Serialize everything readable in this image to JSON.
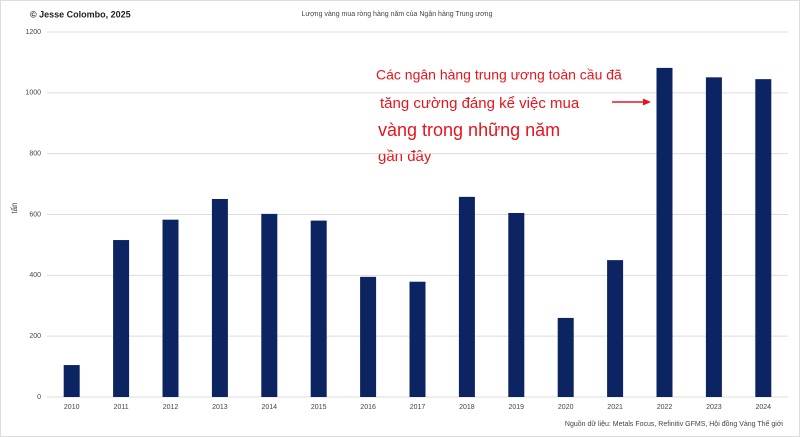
{
  "chart_data": {
    "type": "bar",
    "title": "Lượng vàng mua ròng hàng năm của Ngân hàng Trung ương",
    "credit": "© Jesse Colombo, 2025",
    "y_label": "tấn",
    "source": "Nguồn dữ liệu: Metals Focus, Refinitiv GFMS, Hội đồng Vàng Thế giới",
    "annotation": [
      "Các ngân hàng trung ương toàn cầu đã",
      "tăng cường đáng kể việc mua",
      "vàng trong những năm",
      "gần đây"
    ],
    "annotation_color": "#e8141b",
    "categories": [
      "2010",
      "2011",
      "2012",
      "2013",
      "2014",
      "2015",
      "2016",
      "2017",
      "2018",
      "2019",
      "2020",
      "2021",
      "2022",
      "2023",
      "2024"
    ],
    "values": [
      105,
      516,
      583,
      651,
      602,
      580,
      395,
      379,
      658,
      605,
      260,
      450,
      1082,
      1051,
      1045
    ],
    "color": "#0c2461",
    "ylim": [
      0,
      1200
    ],
    "yticks": [
      0,
      200,
      400,
      600,
      800,
      1000,
      1200
    ],
    "grid": true
  }
}
